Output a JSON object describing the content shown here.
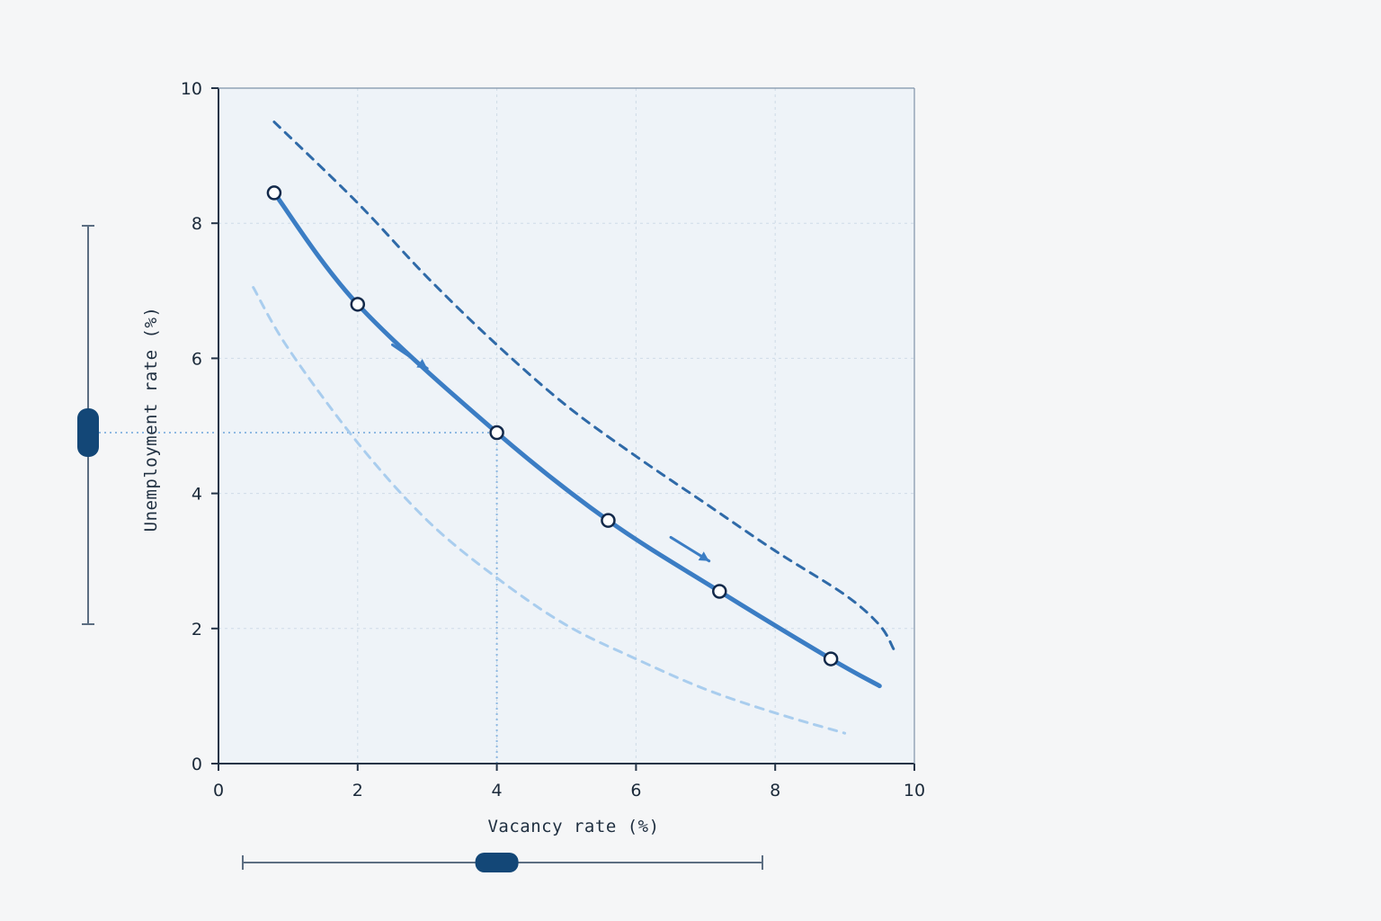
{
  "chart_data": {
    "type": "line",
    "xlabel": "Vacancy rate (%)",
    "ylabel": "Unemployment rate (%)",
    "xlim": [
      0,
      10
    ],
    "ylim": [
      0,
      10
    ],
    "x_ticks": [
      "0",
      "2",
      "4",
      "6",
      "8",
      "10"
    ],
    "y_ticks": [
      "0",
      "2",
      "4",
      "6",
      "8",
      "10"
    ],
    "grid": true,
    "colors": {
      "main": "#3b7dc4",
      "upper": "#2f6aa8",
      "lower": "#a9cdee",
      "marker_edge": "#12294a",
      "axis": "#243447",
      "plot_bg": "#eef3f8",
      "grid": "#cfdbe7",
      "guide": "#8fb9e2",
      "slider": "#5c6e82",
      "slider_thumb": "#134777"
    },
    "series": [
      {
        "style": "solid",
        "x": [
          0.8,
          2.0,
          4.0,
          5.6,
          7.2,
          8.8,
          9.5
        ],
        "y": [
          8.45,
          6.8,
          4.9,
          3.6,
          2.55,
          1.55,
          1.15
        ],
        "markers": [
          [
            0.8,
            8.45
          ],
          [
            2.0,
            6.8
          ],
          [
            4.0,
            4.9
          ],
          [
            5.6,
            3.6
          ],
          [
            7.2,
            2.55
          ],
          [
            8.8,
            1.55
          ]
        ]
      },
      {
        "style": "dashed",
        "x": [
          0.8,
          2.0,
          3.0,
          4.0,
          5.0,
          6.0,
          7.0,
          8.0,
          9.0,
          9.5,
          9.7
        ],
        "y": [
          9.5,
          8.3,
          7.2,
          6.2,
          5.3,
          4.55,
          3.85,
          3.15,
          2.5,
          2.05,
          1.7
        ]
      },
      {
        "style": "dashed",
        "x": [
          0.5,
          1.0,
          2.0,
          3.0,
          4.0,
          5.0,
          6.0,
          7.0,
          8.0,
          9.0
        ],
        "y": [
          7.05,
          6.15,
          4.75,
          3.6,
          2.75,
          2.05,
          1.55,
          1.1,
          0.75,
          0.45
        ]
      }
    ],
    "arrows": [
      {
        "from": [
          2.5,
          6.2
        ],
        "to": [
          3.0,
          5.85
        ]
      },
      {
        "from": [
          6.5,
          3.35
        ],
        "to": [
          7.05,
          3.0
        ]
      }
    ],
    "selected_point": [
      4.0,
      4.9
    ],
    "sliders": {
      "x_slider": {
        "value": 4.0
      },
      "y_slider": {
        "value": 4.9
      }
    }
  }
}
